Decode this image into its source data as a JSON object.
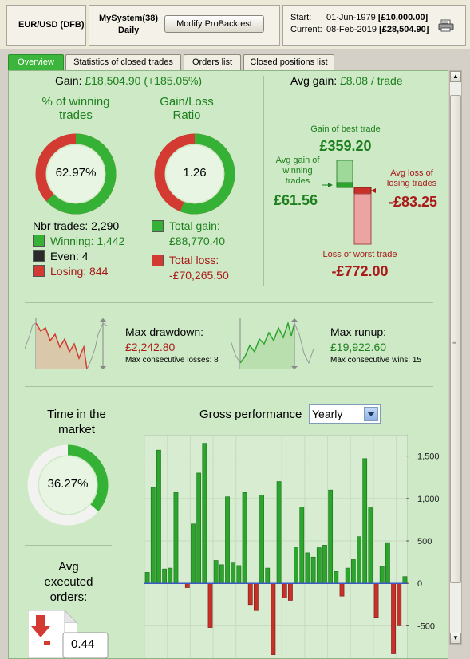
{
  "header": {
    "instrument": "EUR/USD (DFB)",
    "system_name": "MySystem(38)",
    "period": "Daily",
    "modify_button": "Modify ProBacktest",
    "start_label": "Start:",
    "start_date": "01-Jun-1979",
    "start_value": "[£10,000.00]",
    "current_label": "Current:",
    "current_date": "08-Feb-2019",
    "current_value": "[£28,504.90]",
    "print_icon": "printer-icon"
  },
  "tabs": [
    "Overview",
    "Statistics of closed trades",
    "Orders list",
    "Closed positions list"
  ],
  "summary": {
    "gain_label": "Gain: ",
    "gain_value": "£18,504.90 (+185.05%)",
    "winning_title_1": "% of winning",
    "winning_title_2": "trades",
    "winning_pct": "62.97%",
    "winning_fraction": 0.6297,
    "ratio_title_1": "Gain/Loss",
    "ratio_title_2": "Ratio",
    "ratio_value": "1.26",
    "ratio_fraction": 0.558,
    "nbr_trades": "Nbr trades: 2,290",
    "winning": "Winning: 1,442",
    "even": "Even: 4",
    "losing": "Losing: 844",
    "total_gain_label": "Total gain:",
    "total_gain": "£88,770.40",
    "total_loss_label": "Total loss:",
    "total_loss": "-£70,265.50"
  },
  "avg": {
    "avg_gain_label": "Avg gain: ",
    "avg_gain_value": "£8.08 / trade",
    "best_label": "Gain of best trade",
    "best_value": "£359.20",
    "avg_win_label_1": "Avg gain of",
    "avg_win_label_2": "winning",
    "avg_win_label_3": "trades",
    "avg_win_value": "£61.56",
    "avg_loss_label_1": "Avg loss of",
    "avg_loss_label_2": "losing trades",
    "avg_loss_value": "-£83.25",
    "worst_label": "Loss of worst trade",
    "worst_value": "-£772.00"
  },
  "drawdown": {
    "title": "Max drawdown:",
    "value": "£2,242.80",
    "sub": "Max consecutive losses: 8"
  },
  "runup": {
    "title": "Max runup:",
    "value": "£19,922.60",
    "sub": "Max consecutive wins: 15"
  },
  "time_in_market": {
    "title_1": "Time in the",
    "title_2": "market",
    "value": "36.27%",
    "fraction": 0.3627
  },
  "avg_orders": {
    "title_1": "Avg",
    "title_2": "executed",
    "title_3": "orders:",
    "value": "0.44"
  },
  "gross": {
    "title": "Gross performance",
    "select_value": "Yearly"
  },
  "colors": {
    "green": "#2ca52c",
    "red": "#c8312a",
    "panel": "#cde9c5"
  },
  "chart_data": {
    "type": "bar",
    "ylim": [
      -900,
      1750
    ],
    "yticks": [
      "1,500",
      "1,000",
      "500",
      "0",
      "-500"
    ],
    "ytick_values": [
      1500,
      1000,
      500,
      0,
      -500
    ],
    "values": [
      130,
      1130,
      1570,
      170,
      180,
      1070,
      0,
      -50,
      700,
      1300,
      1650,
      -520,
      270,
      220,
      1020,
      240,
      210,
      1070,
      -250,
      -320,
      1040,
      180,
      -840,
      1200,
      -170,
      -200,
      430,
      900,
      360,
      310,
      420,
      450,
      1100,
      140,
      -150,
      180,
      280,
      550,
      1470,
      890,
      -400,
      200,
      480,
      -830,
      -500,
      80
    ]
  }
}
